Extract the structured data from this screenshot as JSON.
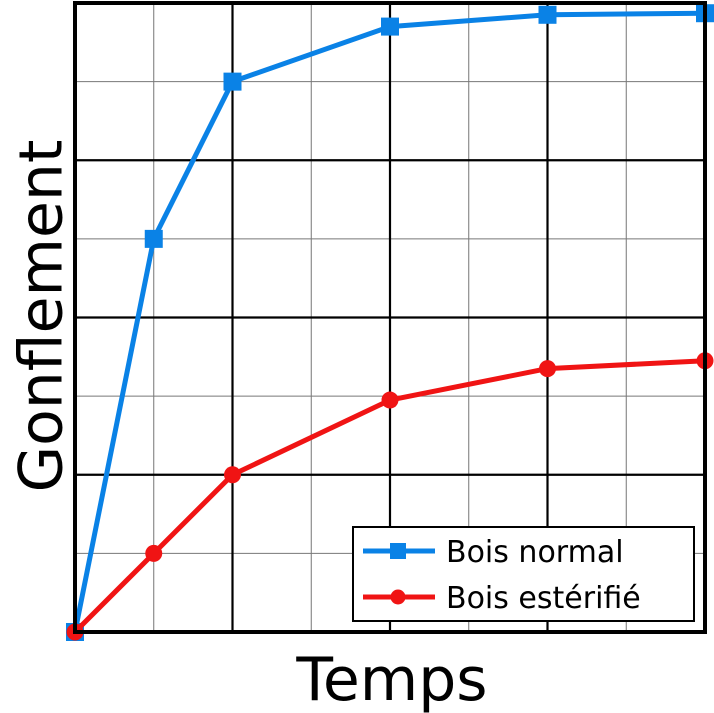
{
  "chart_data": {
    "type": "line",
    "xlabel": "Temps",
    "ylabel": "Gonflement",
    "x": [
      0,
      1,
      2,
      4,
      6,
      8
    ],
    "xlim": [
      0,
      8
    ],
    "ylim": [
      0,
      8
    ],
    "grid": true,
    "legend_position": "bottom-right",
    "series": [
      {
        "name": "Bois normal",
        "color": "#0a82e6",
        "marker": "square",
        "values": [
          0,
          5.0,
          7.0,
          7.7,
          7.85,
          7.87
        ]
      },
      {
        "name": "Bois estérifié",
        "color": "#f01414",
        "marker": "circle",
        "values": [
          0,
          1.0,
          2.0,
          2.95,
          3.35,
          3.45
        ]
      }
    ]
  }
}
